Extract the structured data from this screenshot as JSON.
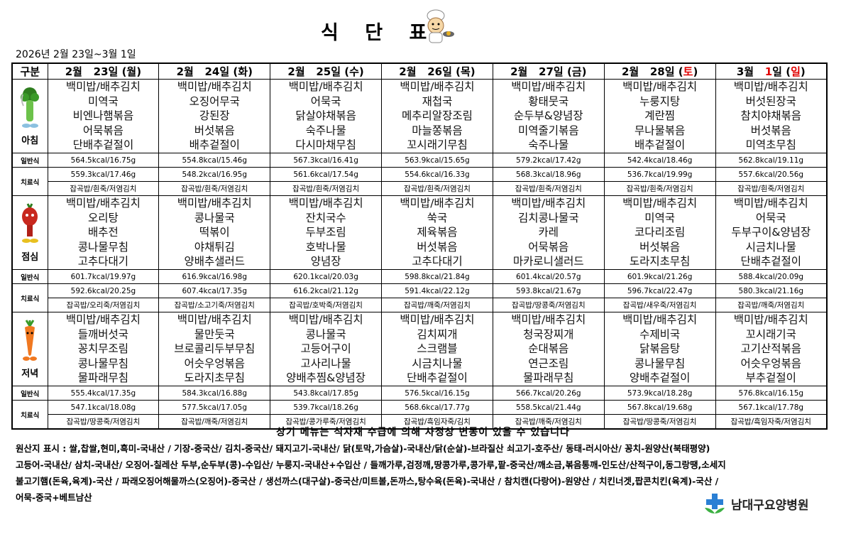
{
  "title": "식 단 표",
  "date_range": "2026년   2월   23일~3월   1일",
  "header": {
    "category_label": "구분",
    "day_suffix": "일",
    "days": [
      {
        "month": "2월",
        "date": "23",
        "weekday": "월",
        "weekend": false,
        "holiday": false
      },
      {
        "month": "2월",
        "date": "24",
        "weekday": "화",
        "weekend": false,
        "holiday": false
      },
      {
        "month": "2월",
        "date": "25",
        "weekday": "수",
        "weekend": false,
        "holiday": false
      },
      {
        "month": "2월",
        "date": "26",
        "weekday": "목",
        "weekend": false,
        "holiday": false
      },
      {
        "month": "2월",
        "date": "27",
        "weekday": "금",
        "weekend": false,
        "holiday": false
      },
      {
        "month": "2월",
        "date": "28",
        "weekday": "토",
        "weekend": true,
        "holiday": false
      },
      {
        "month": "3월",
        "date": "1",
        "weekday": "일",
        "weekend": true,
        "holiday": true
      }
    ]
  },
  "row_labels": {
    "general": "일반식",
    "therapy": "치료식"
  },
  "colors": {
    "weekend": "#e00000"
  },
  "meals": [
    {
      "name": "아침",
      "icon": "broccoli-icon",
      "menus": [
        [
          "백미밥/배추김치",
          "미역국",
          "비엔나햄볶음",
          "어묵볶음",
          "단배추겉절이"
        ],
        [
          "백미밥/배추김치",
          "오징어무국",
          "강된장",
          "버섯볶음",
          "배추겉절이"
        ],
        [
          "백미밥/배추김치",
          "어묵국",
          "닭살야채볶음",
          "숙주나물",
          "다시마채무침"
        ],
        [
          "백미밥/배추김치",
          "재첩국",
          "메추리알장조림",
          "마늘쫑볶음",
          "꼬시래기무침"
        ],
        [
          "백미밥/배추김치",
          "황태뭇국",
          "순두부&양념장",
          "미역줄기볶음",
          "숙주나물"
        ],
        [
          "백미밥/배추김치",
          "누룽지탕",
          "계란찜",
          "무나물볶음",
          "배추겉절이"
        ],
        [
          "백미밥/배추김치",
          "버섯된장국",
          "참치야채볶음",
          "버섯볶음",
          "미역초무침"
        ]
      ],
      "general": [
        "564.5kcal/16.75g",
        "554.8kcal/15.46g",
        "567.3kcal/16.41g",
        "563.9kcal/15.65g",
        "579.2kcal/17.42g",
        "542.4kcal/18.46g",
        "562.8kcal/19.11g"
      ],
      "therapy_kcal": [
        "559.3kcal/17.46g",
        "548.2kcal/16.95g",
        "561.6kcal/17.54g",
        "554.6kcal/16.33g",
        "568.3kcal/18.96g",
        "536.7kcal/19.99g",
        "557.6kcal/20.56g"
      ],
      "therapy_menu": [
        "잡곡밥/흰죽/저염김치",
        "잡곡밥/흰죽/저염김치",
        "잡곡밥/흰죽/저염김치",
        "잡곡밥/흰죽/저염김치",
        "잡곡밥/흰죽/저염김치",
        "잡곡밥/흰죽/저염김치",
        "잡곡밥/흰죽/저염김치"
      ]
    },
    {
      "name": "점심",
      "icon": "tomato-icon",
      "menus": [
        [
          "백미밥/배추김치",
          "오리탕",
          "배추전",
          "콩나물무침",
          "고추다대기"
        ],
        [
          "백미밥/배추김치",
          "콩나물국",
          "떡볶이",
          "야채튀김",
          "양배추샐러드"
        ],
        [
          "백미밥/배추김치",
          "잔치국수",
          "두부조림",
          "호박나물",
          "양념장"
        ],
        [
          "백미밥/배추김치",
          "쑥국",
          "제육볶음",
          "버섯볶음",
          "고추다대기"
        ],
        [
          "백미밥/배추김치",
          "김치콩나물국",
          "카레",
          "어묵볶음",
          "마카로니샐러드"
        ],
        [
          "백미밥/배추김치",
          "미역국",
          "코다리조림",
          "버섯볶음",
          "도라지초무침"
        ],
        [
          "백미밥/배추김치",
          "어묵국",
          "두부구이&양념장",
          "시금치나물",
          "단배추겉절이"
        ]
      ],
      "general": [
        "601.7kcal/19.97g",
        "616.9kcal/16.98g",
        "620.1kcal/20.03g",
        "598.8kcal/21.84g",
        "601.4kcal/20.57g",
        "601.9kcal/21.26g",
        "588.4kcal/20.09g"
      ],
      "therapy_kcal": [
        "592.6kcal/20.25g",
        "607.4kcal/17.35g",
        "616.2kcal/21.12g",
        "591.4kcal/22.12g",
        "593.8kcal/21.67g",
        "596.7kcal/22.47g",
        "580.3kcal/21.16g"
      ],
      "therapy_menu": [
        "잡곡밥/오리죽/저염김치",
        "잡곡밥/소고기죽/저염김치",
        "잡곡밥/호박죽/저염김치",
        "잡곡밥/깨죽/저염김치",
        "잡곡밥/땅콩죽/저염김치",
        "잡곡밥/새우죽/저염김치",
        "잡곡밥/깨죽/저염김치"
      ]
    },
    {
      "name": "저녁",
      "icon": "carrot-icon",
      "menus": [
        [
          "백미밥/배추김치",
          "들깨버섯국",
          "꽁치무조림",
          "콩나물무침",
          "물파래무침"
        ],
        [
          "백미밥/배추김치",
          "물만둣국",
          "브로콜리두부무침",
          "어슷우엉볶음",
          "도라지초무침"
        ],
        [
          "백미밥/배추김치",
          "콩나물국",
          "고등어구이",
          "고사리나물",
          "양배추찜&양념장"
        ],
        [
          "백미밥/배추김치",
          "김치찌개",
          "스크램블",
          "시금치나물",
          "단배추겉절이"
        ],
        [
          "백미밥/배추김치",
          "청국장찌개",
          "순대볶음",
          "연근조림",
          "물파래무침"
        ],
        [
          "백미밥/배추김치",
          "수제비국",
          "닭볶음탕",
          "콩나물무침",
          "양배추겉절이"
        ],
        [
          "백미밥/배추김치",
          "꼬시래기국",
          "고기산적볶음",
          "어슷우엉볶음",
          "부추겉절이"
        ]
      ],
      "general": [
        "555.4kcal/17.35g",
        "584.3kcal/16.88g",
        "543.8kcal/17.85g",
        "576.5kcal/16.15g",
        "566.7kcal/20.26g",
        "573.9kcal/18.28g",
        "576.8kcal/16.15g"
      ],
      "therapy_kcal": [
        "547.1kcal/18.08g",
        "577.5kcal/17.05g",
        "539.7kcal/18.26g",
        "568.6kcal/17.77g",
        "558.5kcal/21.44g",
        "567.8kcal/19.68g",
        "567.1kcal/17.78g"
      ],
      "therapy_menu": [
        "잡곡밥/땅콩죽/저염김치",
        "잡곡밥/깨죽/저염김치",
        "잡곡밥/콩가루죽/저염김치",
        "잡곡밥/흑임자죽/김치",
        "잡곡밥/깨죽/저염김치",
        "잡곡밥/땅콩죽/저염김치",
        "잡곡밥/흑임자죽/저염김치"
      ]
    }
  ],
  "notice": "상기 메뉴는 식자재 수급에 의해 사정상 변동이 있을 수 있습니다",
  "origin_lines": [
    "원산지 표시 : 쌀,찹쌀,현미,흑미-국내산 / 기장-중국산/ 김치-중국산/ 돼지고기-국내산/ 닭(토막,가슴살)-국내산/닭(순살)-브라질산 쇠고기-호주산/ 동태-러시아산/ 꽁치-원양산(북태평양)",
    "고등어-국내산/ 삼치-국내산/ 오징어-칠레산 두부,순두부(콩)-수입산/ 누룽지-국내산+수입산 / 들깨가루,검정깨,땅콩가루,콩가루,팥-중국산/깨소금,볶음통깨-인도산/산적구이,동그랑땡,소세지",
    "불고기햄(돈육,육계)-국산 / 파래오징어해물까스(오징어)-중국산 / 생선까스(대구살)-중국산/미트볼,돈까스,탕수육(돈육)-국내산 / 참치캔(다랑어)-원양산 / 치킨너겟,팝콘치킨(육계)-국산 /",
    "어묵-중국+베트남산"
  ],
  "hospital_name": "남대구요양병원"
}
